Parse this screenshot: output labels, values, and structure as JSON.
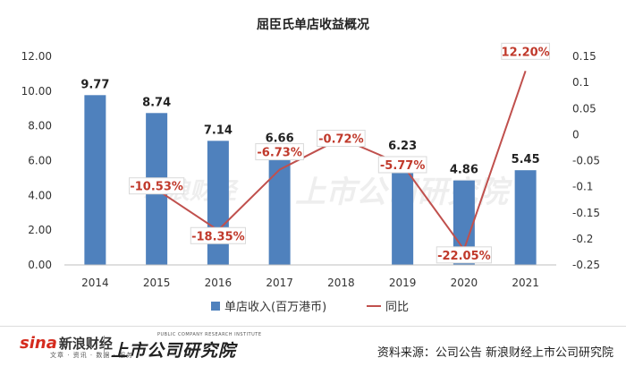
{
  "chart_data": {
    "type": "bar",
    "title": "屈臣氏单店收益概况",
    "categories": [
      "2014",
      "2015",
      "2016",
      "2017",
      "2018",
      "2019",
      "2020",
      "2021"
    ],
    "series": [
      {
        "name": "单店收入(百万港币)",
        "type": "bar",
        "axis": "left",
        "values": [
          9.77,
          8.74,
          7.14,
          6.66,
          null,
          6.23,
          4.86,
          5.45
        ],
        "labels": [
          "9.77",
          "8.74",
          "7.14",
          "6.66",
          "",
          "6.23",
          "4.86",
          "5.45"
        ],
        "color": "#4f81bd"
      },
      {
        "name": "同比",
        "type": "line",
        "axis": "right",
        "values": [
          null,
          -0.1053,
          -0.1835,
          -0.0673,
          -0.0072,
          -0.0577,
          -0.2205,
          0.122
        ],
        "labels": [
          "",
          "-10.53%",
          "-18.35%",
          "-6.73%",
          "-0.72%",
          "-5.77%",
          "-22.05%",
          "12.20%"
        ],
        "color": "#c0504d"
      }
    ],
    "y_left": {
      "min": 0,
      "max": 12,
      "ticks": [
        "0.00",
        "2.00",
        "4.00",
        "6.00",
        "8.00",
        "10.00",
        "12.00"
      ]
    },
    "y_right": {
      "min": -0.25,
      "max": 0.15,
      "ticks": [
        "-0.25",
        "-0.2",
        "-0.15",
        "-0.1",
        "-0.05",
        "0",
        "0.05",
        "0.1",
        "0.15"
      ]
    },
    "legend_position": "bottom",
    "grid": false
  },
  "footer": {
    "brand_icon": "sina-logo-icon",
    "brand": "sina",
    "brand_cn": "新浪财经",
    "brand_tags": "文章 · 资讯 · 数据 · 服务",
    "institute_en": "PUBLIC COMPANY RESEARCH INSTITUTE",
    "institute_cn": "上市公司研究院",
    "source": "资料来源：公司公告 新浪财经上市公司研究院"
  }
}
